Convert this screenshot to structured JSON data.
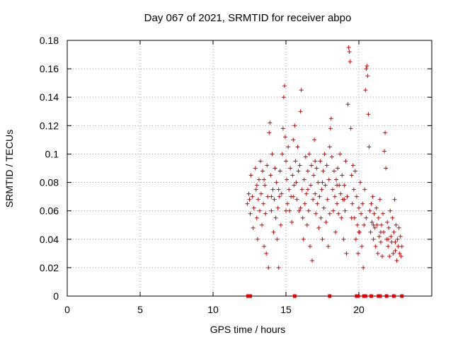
{
  "chart_data": {
    "type": "scatter",
    "title": "Day 067 of 2021, SRMTID for receiver abpo",
    "xlabel": "GPS time / hours",
    "ylabel": "SRMTID / TECUs",
    "xlim": [
      0,
      25
    ],
    "ylim": [
      0,
      0.18
    ],
    "xticks": [
      0,
      5,
      10,
      15,
      20
    ],
    "xtick_labels": [
      "0",
      "5",
      "10",
      "15",
      "20"
    ],
    "yticks": [
      0,
      0.02,
      0.04,
      0.06,
      0.08,
      0.1,
      0.12,
      0.14,
      0.16,
      0.18
    ],
    "ytick_labels": [
      "0",
      "0.02",
      "0.04",
      "0.06",
      "0.08",
      "0.1",
      "0.12",
      "0.14",
      "0.16",
      "0.18"
    ],
    "grid": true,
    "marker": "+",
    "color": "#e00000",
    "series": [
      {
        "name": "SRMTID",
        "points": [
          [
            12.35,
            0.065
          ],
          [
            12.45,
            0.072
          ],
          [
            12.55,
            0.058
          ],
          [
            12.6,
            0.085
          ],
          [
            12.7,
            0.07
          ],
          [
            12.75,
            0.048
          ],
          [
            12.8,
            0.062
          ],
          [
            12.9,
            0.09
          ],
          [
            12.95,
            0.075
          ],
          [
            13.0,
            0.055
          ],
          [
            13.05,
            0.04
          ],
          [
            13.1,
            0.068
          ],
          [
            13.15,
            0.082
          ],
          [
            13.2,
            0.06
          ],
          [
            13.25,
            0.095
          ],
          [
            13.3,
            0.072
          ],
          [
            13.35,
            0.05
          ],
          [
            13.4,
            0.088
          ],
          [
            13.45,
            0.065
          ],
          [
            13.5,
            0.035
          ],
          [
            13.55,
            0.078
          ],
          [
            13.6,
            0.058
          ],
          [
            13.65,
            0.03
          ],
          [
            13.7,
            0.092
          ],
          [
            13.75,
            0.07
          ],
          [
            13.8,
            0.02
          ],
          [
            13.85,
            0.115
          ],
          [
            13.9,
            0.122
          ],
          [
            13.95,
            0.085
          ],
          [
            14.0,
            0.06
          ],
          [
            14.05,
            0.1
          ],
          [
            14.1,
            0.075
          ],
          [
            14.15,
            0.045
          ],
          [
            14.2,
            0.068
          ],
          [
            14.25,
            0.09
          ],
          [
            14.3,
            0.055
          ],
          [
            14.35,
            0.08
          ],
          [
            14.4,
            0.04
          ],
          [
            14.45,
            0.062
          ],
          [
            14.5,
            0.02
          ],
          [
            14.55,
            0.07
          ],
          [
            14.6,
            0.088
          ],
          [
            14.65,
            0.05
          ],
          [
            14.7,
            0.072
          ],
          [
            14.75,
            0.1
          ],
          [
            14.8,
            0.118
          ],
          [
            14.85,
            0.14
          ],
          [
            14.9,
            0.148
          ],
          [
            14.95,
            0.112
          ],
          [
            15.0,
            0.095
          ],
          [
            15.05,
            0.082
          ],
          [
            15.1,
            0.065
          ],
          [
            15.15,
            0.105
          ],
          [
            15.2,
            0.075
          ],
          [
            15.25,
            0.06
          ],
          [
            15.3,
            0.09
          ],
          [
            15.35,
            0.07
          ],
          [
            15.4,
            0.052
          ],
          [
            15.45,
            0.085
          ],
          [
            15.5,
            0.11
          ],
          [
            15.55,
            0.078
          ],
          [
            15.6,
            0.12
          ],
          [
            15.65,
            0.095
          ],
          [
            15.7,
            0.08
          ],
          [
            15.75,
            0.068
          ],
          [
            15.8,
            0.105
          ],
          [
            15.85,
            0.088
          ],
          [
            15.9,
            0.06
          ],
          [
            15.95,
            0.092
          ],
          [
            16.0,
            0.13
          ],
          [
            16.05,
            0.145
          ],
          [
            16.1,
            0.075
          ],
          [
            16.15,
            0.055
          ],
          [
            16.2,
            0.04
          ],
          [
            16.25,
            0.082
          ],
          [
            16.3,
            0.065
          ],
          [
            16.35,
            0.098
          ],
          [
            16.4,
            0.072
          ],
          [
            16.45,
            0.05
          ],
          [
            16.5,
            0.088
          ],
          [
            16.55,
            0.06
          ],
          [
            16.6,
            0.1
          ],
          [
            16.65,
            0.035
          ],
          [
            16.7,
            0.078
          ],
          [
            16.75,
            0.092
          ],
          [
            16.8,
            0.025
          ],
          [
            16.85,
            0.068
          ],
          [
            16.9,
            0.085
          ],
          [
            16.95,
            0.11
          ],
          [
            17.0,
            0.072
          ],
          [
            17.05,
            0.058
          ],
          [
            17.1,
            0.09
          ],
          [
            17.15,
            0.065
          ],
          [
            17.2,
            0.08
          ],
          [
            17.25,
            0.048
          ],
          [
            17.3,
            0.07
          ],
          [
            17.35,
            0.095
          ],
          [
            17.4,
            0.055
          ],
          [
            17.45,
            0.075
          ],
          [
            17.5,
            0.04
          ],
          [
            17.55,
            0.088
          ],
          [
            17.6,
            0.062
          ],
          [
            17.65,
            0.1
          ],
          [
            17.7,
            0.078
          ],
          [
            17.75,
            0.052
          ],
          [
            17.8,
            0.092
          ],
          [
            17.85,
            0.068
          ],
          [
            17.9,
            0.035
          ],
          [
            17.95,
            0.082
          ],
          [
            18.0,
            0.105
          ],
          [
            18.05,
            0.118
          ],
          [
            18.1,
            0.125
          ],
          [
            18.15,
            0.098
          ],
          [
            18.2,
            0.075
          ],
          [
            18.25,
            0.06
          ],
          [
            18.3,
            0.088
          ],
          [
            18.35,
            0.07
          ],
          [
            18.4,
            0.045
          ],
          [
            18.45,
            0.082
          ],
          [
            18.5,
            0.065
          ],
          [
            18.55,
            0.09
          ],
          [
            18.6,
            0.058
          ],
          [
            18.65,
            0.078
          ],
          [
            18.7,
            0.1
          ],
          [
            18.75,
            0.072
          ],
          [
            18.8,
            0.055
          ],
          [
            18.85,
            0.085
          ],
          [
            18.9,
            0.068
          ],
          [
            18.95,
            0.04
          ],
          [
            19.0,
            0.078
          ],
          [
            19.05,
            0.06
          ],
          [
            19.1,
            0.095
          ],
          [
            19.15,
            0.03
          ],
          [
            19.2,
            0.07
          ],
          [
            19.25,
            0.135
          ],
          [
            19.3,
            0.175
          ],
          [
            19.35,
            0.172
          ],
          [
            19.4,
            0.165
          ],
          [
            19.45,
            0.118
          ],
          [
            19.5,
            0.085
          ],
          [
            19.55,
            0.065
          ],
          [
            19.6,
            0.092
          ],
          [
            19.65,
            0.075
          ],
          [
            19.7,
            0.055
          ],
          [
            19.75,
            0.088
          ],
          [
            19.8,
            0.04
          ],
          [
            19.85,
            0.07
          ],
          [
            19.9,
            0.05
          ],
          [
            19.95,
            0.03
          ],
          [
            20.0,
            0.062
          ],
          [
            20.05,
            0.045
          ],
          [
            20.1,
            0.08
          ],
          [
            20.15,
            0.058
          ],
          [
            20.2,
            0.035
          ],
          [
            20.25,
            0.065
          ],
          [
            20.3,
            0.02
          ],
          [
            20.35,
            0.05
          ],
          [
            20.4,
            0.075
          ],
          [
            20.45,
            0.145
          ],
          [
            20.5,
            0.16
          ],
          [
            20.55,
            0.162
          ],
          [
            20.6,
            0.155
          ],
          [
            20.65,
            0.128
          ],
          [
            20.7,
            0.105
          ],
          [
            20.75,
            0.06
          ],
          [
            20.8,
            0.045
          ],
          [
            20.85,
            0.065
          ],
          [
            20.9,
            0.052
          ],
          [
            20.95,
            0.07
          ],
          [
            21.0,
            0.04
          ],
          [
            21.05,
            0.058
          ],
          [
            21.1,
            0.048
          ],
          [
            21.15,
            0.035
          ],
          [
            21.2,
            0.062
          ],
          [
            21.25,
            0.05
          ],
          [
            21.3,
            0.03
          ],
          [
            21.35,
            0.055
          ],
          [
            21.4,
            0.042
          ],
          [
            21.45,
            0.068
          ],
          [
            21.5,
            0.038
          ],
          [
            21.55,
            0.05
          ],
          [
            21.6,
            0.028
          ],
          [
            21.65,
            0.058
          ],
          [
            21.7,
            0.045
          ],
          [
            21.75,
            0.102
          ],
          [
            21.8,
            0.115
          ],
          [
            21.85,
            0.09
          ],
          [
            21.9,
            0.04
          ],
          [
            21.95,
            0.052
          ],
          [
            22.0,
            0.035
          ],
          [
            22.05,
            0.048
          ],
          [
            22.1,
            0.028
          ],
          [
            22.15,
            0.06
          ],
          [
            22.2,
            0.042
          ],
          [
            22.25,
            0.038
          ],
          [
            22.3,
            0.055
          ],
          [
            22.35,
            0.03
          ],
          [
            22.4,
            0.045
          ],
          [
            22.45,
            0.068
          ],
          [
            22.5,
            0.032
          ],
          [
            22.55,
            0.05
          ],
          [
            22.6,
            0.025
          ],
          [
            22.65,
            0.04
          ],
          [
            22.7,
            0.035
          ],
          [
            22.75,
            0.048
          ],
          [
            22.8,
            0.03
          ],
          [
            22.85,
            0.042
          ],
          [
            22.9,
            0.028
          ],
          [
            22.95,
            0.035
          ],
          [
            12.5,
            0.068
          ],
          [
            13.0,
            0.078
          ],
          [
            13.5,
            0.082
          ],
          [
            14.0,
            0.07
          ],
          [
            14.5,
            0.075
          ],
          [
            15.0,
            0.06
          ],
          [
            15.5,
            0.07
          ],
          [
            16.0,
            0.062
          ],
          [
            16.5,
            0.075
          ],
          [
            17.0,
            0.095
          ],
          [
            17.5,
            0.08
          ],
          [
            18.0,
            0.058
          ],
          [
            18.5,
            0.078
          ],
          [
            19.0,
            0.068
          ],
          [
            19.5,
            0.055
          ],
          [
            20.0,
            0.045
          ],
          [
            20.5,
            0.055
          ],
          [
            21.0,
            0.05
          ],
          [
            21.5,
            0.045
          ],
          [
            22.0,
            0.04
          ],
          [
            22.5,
            0.038
          ]
        ]
      }
    ],
    "zero_markers_x": [
      12.4,
      12.55,
      15.6,
      18.0,
      19.85,
      19.95,
      20.35,
      20.45,
      20.85,
      21.35,
      21.45,
      21.9,
      22.4,
      22.95
    ]
  }
}
